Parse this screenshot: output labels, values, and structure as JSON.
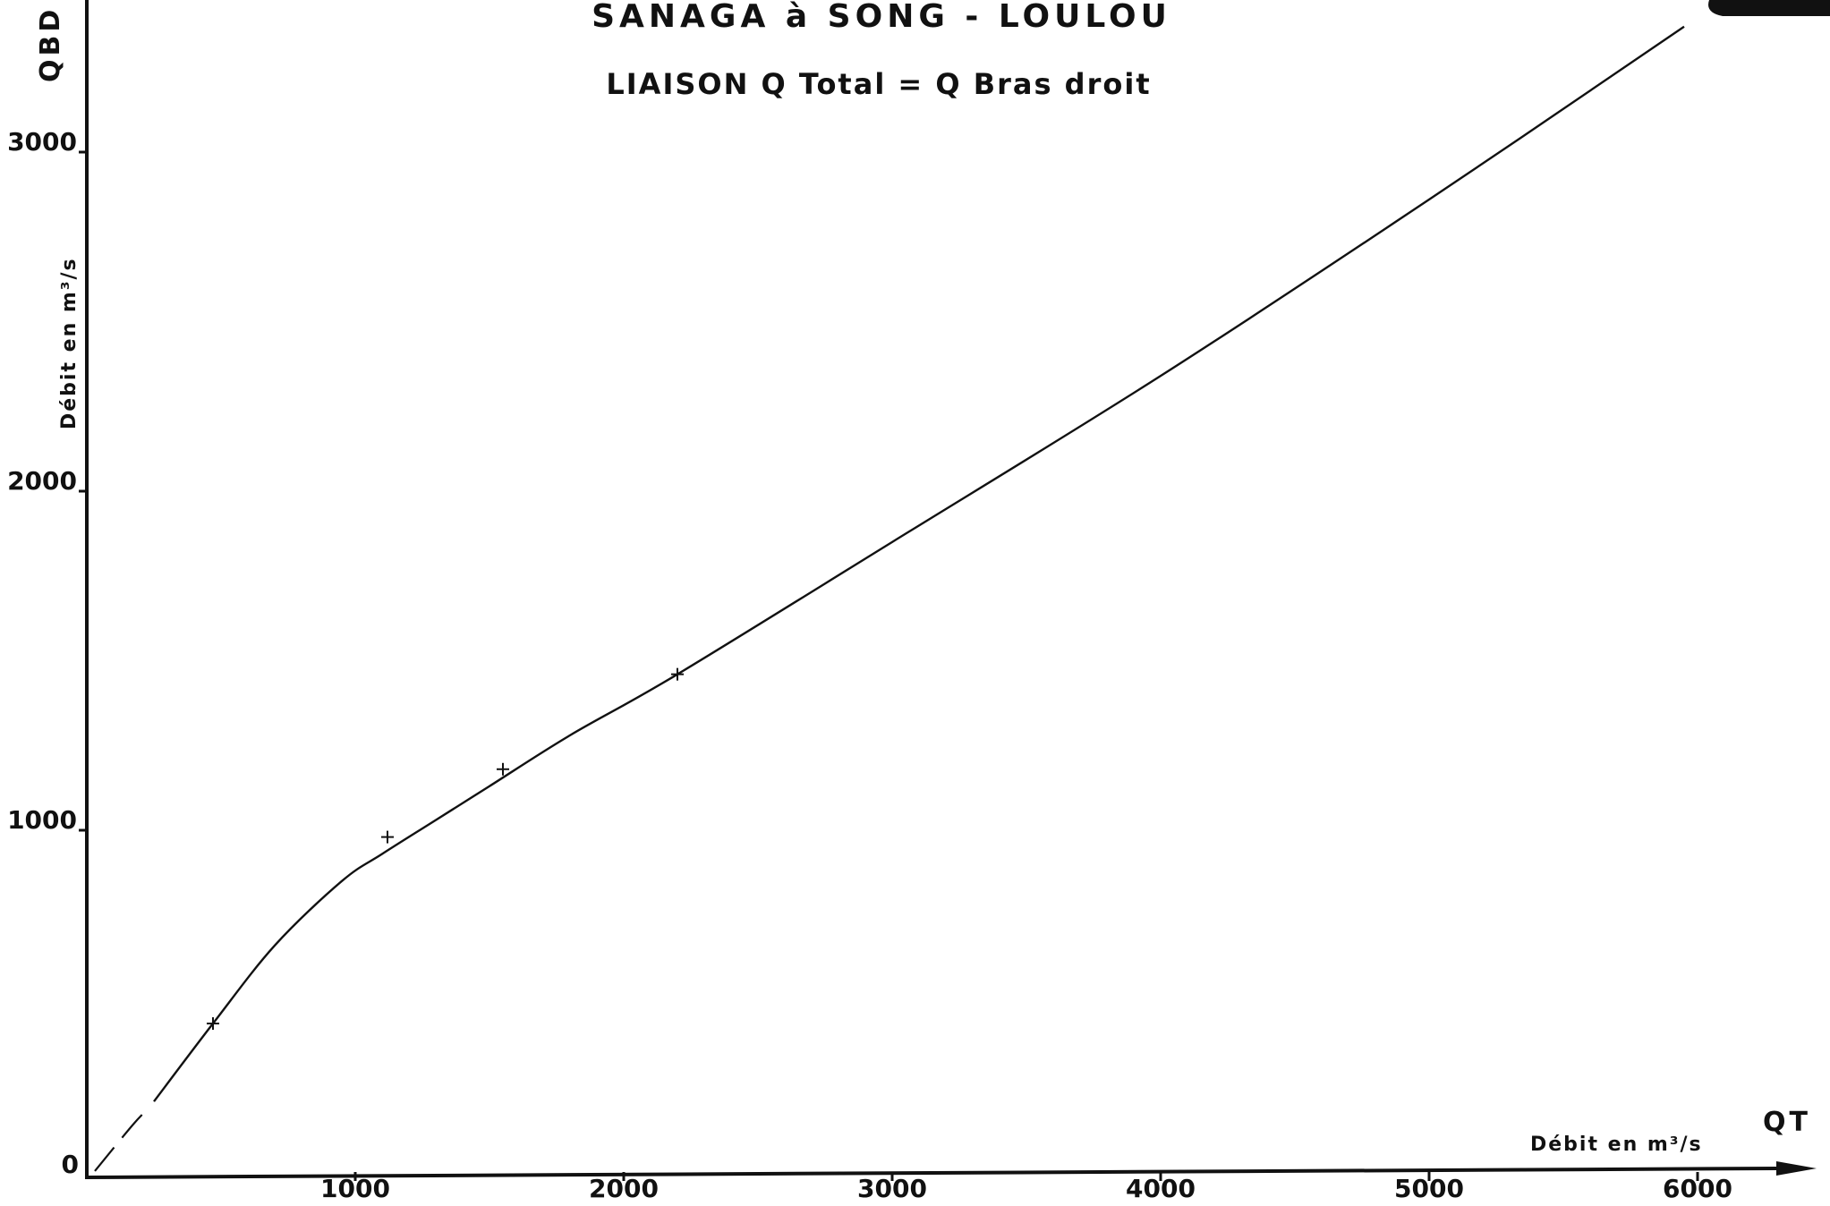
{
  "chart_data": {
    "type": "line",
    "title": "SANAGA à SONG - LOULOU",
    "subtitle": "LIAISON Q Total = Q Bras droit",
    "x_axis": {
      "name": "QT",
      "label": "Débit en m³/s",
      "range": [
        0,
        6400
      ],
      "ticks": [
        1000,
        2000,
        3000,
        4000,
        5000,
        6000
      ],
      "tick_labels": [
        "1000",
        "2000",
        "3000",
        "4000",
        "5000",
        "6000"
      ]
    },
    "y_axis": {
      "name": "QBD",
      "label": "Débit en m³/s",
      "range": [
        0,
        3400
      ],
      "ticks": [
        0,
        1000,
        2000,
        3000
      ],
      "tick_labels": [
        "0",
        "1000",
        "2000",
        "3000"
      ]
    },
    "grid": false,
    "points": [
      {
        "x": 470,
        "y": 430
      },
      {
        "x": 1120,
        "y": 980
      },
      {
        "x": 1550,
        "y": 1180
      },
      {
        "x": 2200,
        "y": 1460
      }
    ],
    "curve_dashed": [
      {
        "x": 30,
        "y": -5
      },
      {
        "x": 170,
        "y": 130
      },
      {
        "x": 230,
        "y": 180
      }
    ],
    "curve_solid": [
      {
        "x": 250,
        "y": 200
      },
      {
        "x": 470,
        "y": 430
      },
      {
        "x": 700,
        "y": 660
      },
      {
        "x": 950,
        "y": 850
      },
      {
        "x": 1100,
        "y": 930
      },
      {
        "x": 1300,
        "y": 1030
      },
      {
        "x": 1500,
        "y": 1130
      },
      {
        "x": 1800,
        "y": 1280
      },
      {
        "x": 2200,
        "y": 1460
      },
      {
        "x": 3000,
        "y": 1850
      },
      {
        "x": 4000,
        "y": 2340
      },
      {
        "x": 5000,
        "y": 2860
      },
      {
        "x": 5950,
        "y": 3370
      }
    ],
    "line_color": "#111111",
    "marker": "plus"
  }
}
